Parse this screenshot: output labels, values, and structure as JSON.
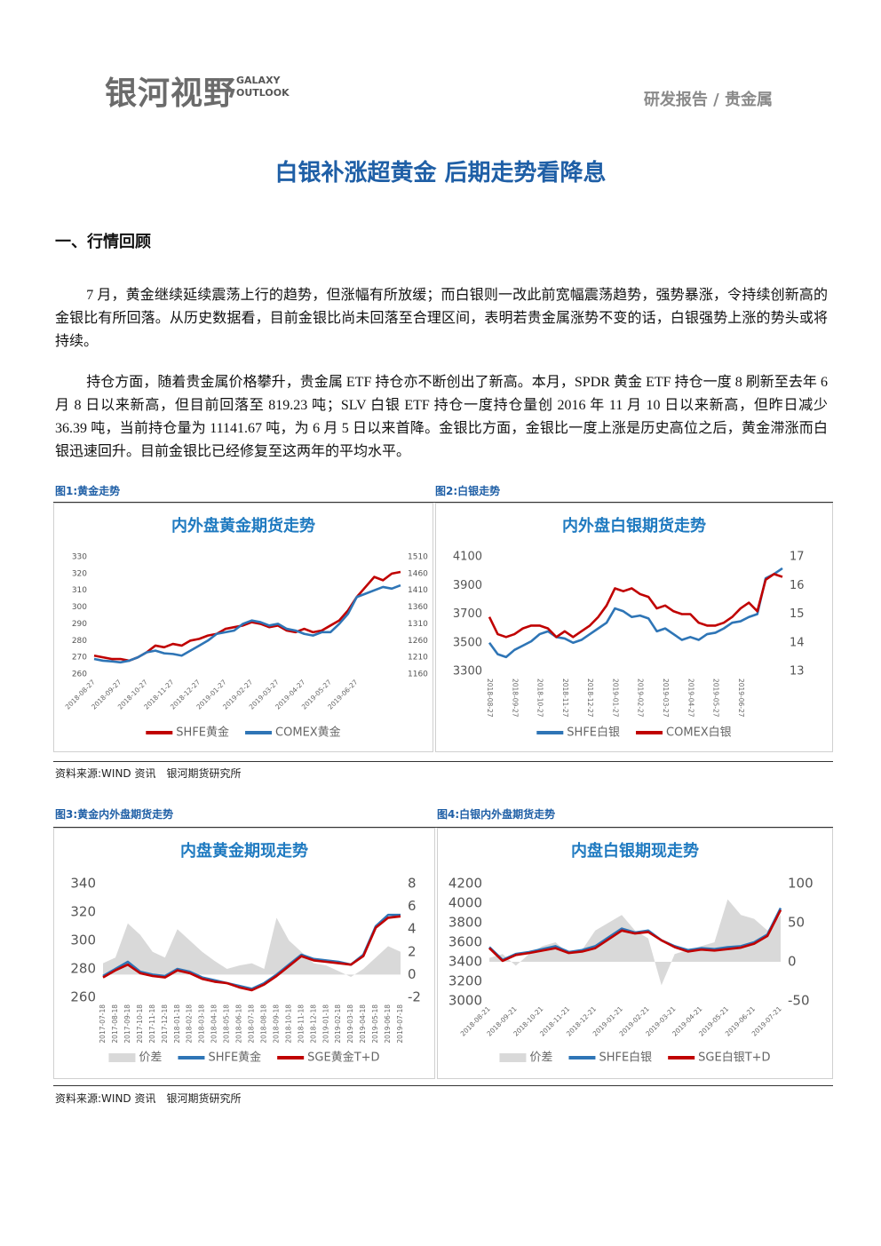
{
  "header": {
    "logo": "银河视野",
    "logo_en_1": "GALAXY",
    "logo_en_2": "OUTLOOK",
    "category": "研发报告 / 贵金属"
  },
  "title": "白银补涨超黄金 后期走势看降息",
  "section": "一、行情回顾",
  "paragraphs": [
    "7 月，黄金继续延续震荡上行的趋势，但涨幅有所放缓；而白银则一改此前宽幅震荡趋势，强势暴涨，令持续创新高的金银比有所回落。从历史数据看，目前金银比尚未回落至合理区间，表明若贵金属涨势不变的话，白银强势上涨的势头或将持续。",
    "持仓方面，随着贵金属价格攀升，贵金属 ETF 持仓亦不断创出了新高。本月，SPDR 黄金 ETF 持仓一度 8 刷新至去年 6 月 8 日以来新高，但目前回落至 819.23 吨；SLV 白银 ETF 持仓一度持仓量创 2016 年 11 月 10 日以来新高，但昨日减少 36.39 吨，当前持仓量为 11141.67 吨，为 6 月 5 日以来首降。金银比方面，金银比一度上涨是历史高位之后，黄金滞涨而白银迅速回升。目前金银比已经修复至这两年的平均水平。"
  ],
  "figures": [
    {
      "caption": "图1:黄金走势",
      "chart": {
        "type": "line",
        "title": "内外盘黄金期货走势",
        "categories": [
          "2018-08-27",
          null,
          null,
          "2018-09-27",
          null,
          null,
          "2018-10-27",
          null,
          null,
          "2018-11-27",
          null,
          null,
          "2018-12-27",
          null,
          null,
          "2019-01-27",
          null,
          null,
          "2019-02-27",
          null,
          null,
          "2019-03-27",
          null,
          null,
          "2019-04-27",
          null,
          null,
          "2019-05-27",
          null,
          null,
          "2019-06-27",
          null,
          null,
          null,
          null,
          null
        ],
        "ylim": [
          260,
          330
        ],
        "yticks": [
          260,
          270,
          280,
          290,
          300,
          310,
          320,
          330
        ],
        "y2lim": [
          1160,
          1510
        ],
        "y2ticks": [
          1160,
          1210,
          1260,
          1310,
          1360,
          1410,
          1460,
          1510
        ],
        "series": [
          {
            "name": "SHFE黄金",
            "color": "#c00000",
            "values": [
              271,
              270,
              269,
              269,
              268,
              270,
              273,
              277,
              276,
              278,
              277,
              280,
              281,
              283,
              284,
              287,
              288,
              289,
              291,
              290,
              288,
              289,
              286,
              285,
              287,
              285,
              286,
              289,
              292,
              298,
              306,
              312,
              318,
              316,
              320,
              321
            ]
          },
          {
            "name": "COMEX黄金",
            "color": "#2e75b6",
            "axis": "y2",
            "values": [
              1205,
              1200,
              1198,
              1195,
              1200,
              1210,
              1225,
              1230,
              1222,
              1220,
              1215,
              1230,
              1245,
              1260,
              1280,
              1285,
              1290,
              1310,
              1320,
              1315,
              1305,
              1310,
              1295,
              1290,
              1280,
              1275,
              1285,
              1285,
              1310,
              1340,
              1390,
              1400,
              1410,
              1420,
              1415,
              1425
            ]
          }
        ]
      }
    },
    {
      "caption": "图2:白银走势",
      "chart": {
        "type": "line",
        "title": "内外盘白银期货走势",
        "categories": [
          "2018-08-27",
          null,
          null,
          "2018-09-27",
          null,
          null,
          "2018-10-27",
          null,
          null,
          "2018-11-27",
          null,
          null,
          "2018-12-27",
          null,
          null,
          "2019-01-27",
          null,
          null,
          "2019-02-27",
          null,
          null,
          "2019-03-27",
          null,
          null,
          "2019-04-27",
          null,
          null,
          "2019-05-27",
          null,
          null,
          "2019-06-27",
          null,
          null,
          null,
          null,
          null
        ],
        "ylim": [
          3300,
          4100
        ],
        "yticks": [
          3300,
          3500,
          3700,
          3900,
          4100
        ],
        "y2lim": [
          13,
          17
        ],
        "y2ticks": [
          13,
          14,
          15,
          16,
          17
        ],
        "series": [
          {
            "name": "SHFE白银",
            "color": "#2e75b6",
            "values": [
              3500,
              3420,
              3400,
              3450,
              3480,
              3510,
              3560,
              3580,
              3540,
              3530,
              3500,
              3520,
              3560,
              3600,
              3640,
              3740,
              3720,
              3680,
              3690,
              3670,
              3580,
              3600,
              3560,
              3520,
              3540,
              3520,
              3560,
              3570,
              3600,
              3640,
              3650,
              3680,
              3700,
              3950,
              3980,
              4020
            ]
          },
          {
            "name": "COMEX白银",
            "color": "#c00000",
            "axis": "y2",
            "values": [
              14.9,
              14.3,
              14.2,
              14.3,
              14.5,
              14.6,
              14.6,
              14.5,
              14.2,
              14.4,
              14.2,
              14.4,
              14.6,
              14.9,
              15.3,
              15.9,
              15.8,
              15.9,
              15.7,
              15.6,
              15.2,
              15.3,
              15.1,
              15.0,
              15.0,
              14.7,
              14.6,
              14.6,
              14.7,
              14.9,
              15.2,
              15.4,
              15.1,
              16.2,
              16.4,
              16.3
            ]
          }
        ]
      }
    },
    {
      "caption": "图3:黄金内外盘期货走势",
      "chart": {
        "type": "line",
        "title": "内盘黄金期现走势",
        "categories": [
          "2017-07-18",
          "2017-08-18",
          "2017-09-18",
          "2017-10-18",
          "2017-11-18",
          "2017-12-18",
          "2018-01-18",
          "2018-02-18",
          "2018-03-18",
          "2018-04-18",
          "2018-05-18",
          "2018-06-18",
          "2018-07-18",
          "2018-08-18",
          "2018-09-18",
          "2018-10-18",
          "2018-11-18",
          "2018-12-18",
          "2019-01-18",
          "2019-02-18",
          "2019-03-18",
          "2019-04-18",
          "2019-05-18",
          "2019-06-18",
          "2019-07-18"
        ],
        "ylim": [
          260,
          340
        ],
        "yticks": [
          260,
          280,
          300,
          320,
          340
        ],
        "y2lim": [
          -2,
          8
        ],
        "y2ticks": [
          -2,
          0,
          2,
          4,
          6,
          8
        ],
        "series": [
          {
            "name": "价差",
            "color": "#d9d9d9",
            "type": "area",
            "axis": "y2",
            "values": [
              1,
              1.5,
              4.5,
              3.5,
              2,
              1.5,
              4,
              3,
              2,
              1.2,
              0.5,
              0.8,
              1,
              0.5,
              5,
              3,
              2,
              1,
              0.8,
              0.3,
              -0.2,
              0.5,
              1.5,
              2.5,
              2
            ]
          },
          {
            "name": "SHFE黄金",
            "color": "#2e75b6",
            "values": [
              275,
              280,
              285,
              278,
              276,
              275,
              280,
              278,
              274,
              272,
              270,
              268,
              266,
              270,
              276,
              283,
              290,
              287,
              286,
              285,
              283,
              290,
              310,
              318,
              318
            ]
          },
          {
            "name": "SGE黄金T+D",
            "color": "#c00000",
            "values": [
              274,
              279,
              283,
              277,
              275,
              274,
              279,
              277,
              273,
              271,
              270,
              267,
              265,
              269,
              275,
              282,
              289,
              286,
              285,
              284,
              283,
              289,
              309,
              316,
              317
            ]
          }
        ]
      }
    },
    {
      "caption": "图4:白银内外盘期货走势",
      "chart": {
        "type": "line",
        "title": "内盘白银期现走势",
        "categories": [
          "2018-08-21",
          null,
          "2018-09-21",
          null,
          "2018-10-21",
          null,
          "2018-11-21",
          null,
          "2018-12-21",
          null,
          "2019-01-21",
          null,
          "2019-02-21",
          null,
          "2019-03-21",
          null,
          "2019-04-21",
          null,
          "2019-05-21",
          null,
          "2019-06-21",
          null,
          "2019-07-21"
        ],
        "ylim": [
          3000,
          4200
        ],
        "yticks": [
          3000,
          3200,
          3400,
          3600,
          3800,
          4000,
          4200
        ],
        "y2lim": [
          -50,
          100
        ],
        "y2ticks": [
          -50,
          0,
          50,
          100
        ],
        "series": [
          {
            "name": "价差",
            "color": "#d9d9d9",
            "type": "area",
            "axis": "y2",
            "values": [
              5,
              10,
              -5,
              10,
              20,
              25,
              10,
              15,
              40,
              50,
              60,
              40,
              30,
              -30,
              10,
              15,
              20,
              25,
              80,
              60,
              55,
              40,
              60
            ]
          },
          {
            "name": "SHFE白银",
            "color": "#2e75b6",
            "values": [
              3550,
              3420,
              3480,
              3500,
              3530,
              3560,
              3500,
              3520,
              3560,
              3650,
              3740,
              3700,
              3720,
              3620,
              3560,
              3520,
              3540,
              3530,
              3550,
              3560,
              3600,
              3680,
              3950
            ]
          },
          {
            "name": "SGE白银T+D",
            "color": "#c00000",
            "values": [
              3540,
              3410,
              3470,
              3490,
              3515,
              3540,
              3490,
              3505,
              3540,
              3630,
              3720,
              3690,
              3705,
              3620,
              3550,
              3505,
              3525,
              3515,
              3530,
              3545,
              3585,
              3665,
              3930
            ]
          }
        ]
      }
    }
  ],
  "sources": [
    "资料来源:WIND 资讯　银河期货研究所",
    "资料来源:WIND 资讯　银河期货研究所"
  ]
}
